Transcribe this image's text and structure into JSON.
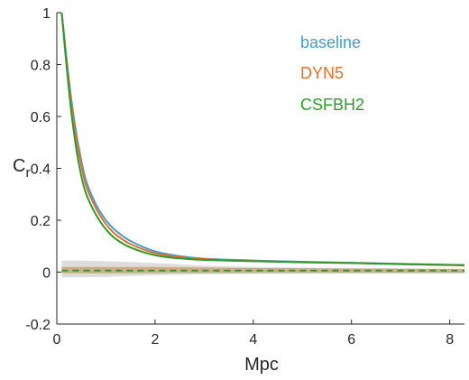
{
  "chart_data": {
    "type": "line",
    "xlabel": "Mpc",
    "ylabel": "C",
    "ylabel_sub": "r",
    "xlim": [
      0,
      8.3
    ],
    "ylim": [
      -0.2,
      1
    ],
    "xticks": [
      "0",
      "2",
      "4",
      "6",
      "8"
    ],
    "yticks": [
      "-0.2",
      "0",
      "0.2",
      "0.4",
      "0.6",
      "0.8",
      "1"
    ],
    "grid": false,
    "legend_position": "top-right",
    "series": [
      {
        "name": "baseline",
        "color": "#4a9cc9",
        "x": [
          0.1,
          0.2,
          0.3,
          0.4,
          0.5,
          0.6,
          0.8,
          1.0,
          1.2,
          1.5,
          2.0,
          2.5,
          3.0,
          4.0,
          5.0,
          6.0,
          7.0,
          8.3
        ],
        "y": [
          1.0,
          0.82,
          0.66,
          0.53,
          0.43,
          0.35,
          0.26,
          0.2,
          0.16,
          0.12,
          0.08,
          0.062,
          0.052,
          0.045,
          0.04,
          0.036,
          0.032,
          0.027
        ]
      },
      {
        "name": "DYN5",
        "color": "#e07030",
        "x": [
          0.1,
          0.2,
          0.3,
          0.4,
          0.5,
          0.6,
          0.8,
          1.0,
          1.2,
          1.5,
          2.0,
          2.5,
          3.0,
          4.0,
          5.0,
          6.0,
          7.0,
          8.3
        ],
        "y": [
          1.0,
          0.81,
          0.64,
          0.51,
          0.41,
          0.33,
          0.245,
          0.185,
          0.145,
          0.108,
          0.073,
          0.058,
          0.05,
          0.043,
          0.039,
          0.035,
          0.031,
          0.026
        ]
      },
      {
        "name": "CSFBH2",
        "color": "#2e9a2e",
        "x": [
          0.1,
          0.2,
          0.3,
          0.4,
          0.5,
          0.6,
          0.8,
          1.0,
          1.2,
          1.5,
          2.0,
          2.5,
          3.0,
          4.0,
          5.0,
          6.0,
          7.0,
          8.3
        ],
        "y": [
          1.0,
          0.79,
          0.61,
          0.47,
          0.37,
          0.3,
          0.22,
          0.165,
          0.128,
          0.095,
          0.065,
          0.053,
          0.047,
          0.042,
          0.038,
          0.035,
          0.031,
          0.027
        ]
      }
    ],
    "null_band": {
      "x": [
        0.1,
        0.5,
        1.0,
        2.0,
        3.0,
        4.0,
        5.0,
        6.0,
        7.0,
        8.3
      ],
      "outer_upper": [
        0.045,
        0.045,
        0.042,
        0.035,
        0.025,
        0.02,
        0.018,
        0.016,
        0.015,
        0.014
      ],
      "outer_lower": [
        -0.02,
        -0.02,
        -0.018,
        -0.012,
        -0.008,
        -0.007,
        -0.006,
        -0.005,
        -0.005,
        -0.005
      ],
      "outer_color": "#d4d4d4",
      "inner_upper": [
        0.02,
        0.02,
        0.02,
        0.02,
        0.018,
        0.016,
        0.015,
        0.014,
        0.013,
        0.012
      ],
      "inner_lower": [
        -0.005,
        -0.005,
        -0.005,
        -0.004,
        -0.004,
        -0.003,
        -0.003,
        -0.003,
        -0.003,
        -0.003
      ],
      "inner_color": "#c8a882",
      "mean": 0.006,
      "mean_color": "#2e9a2e"
    }
  }
}
